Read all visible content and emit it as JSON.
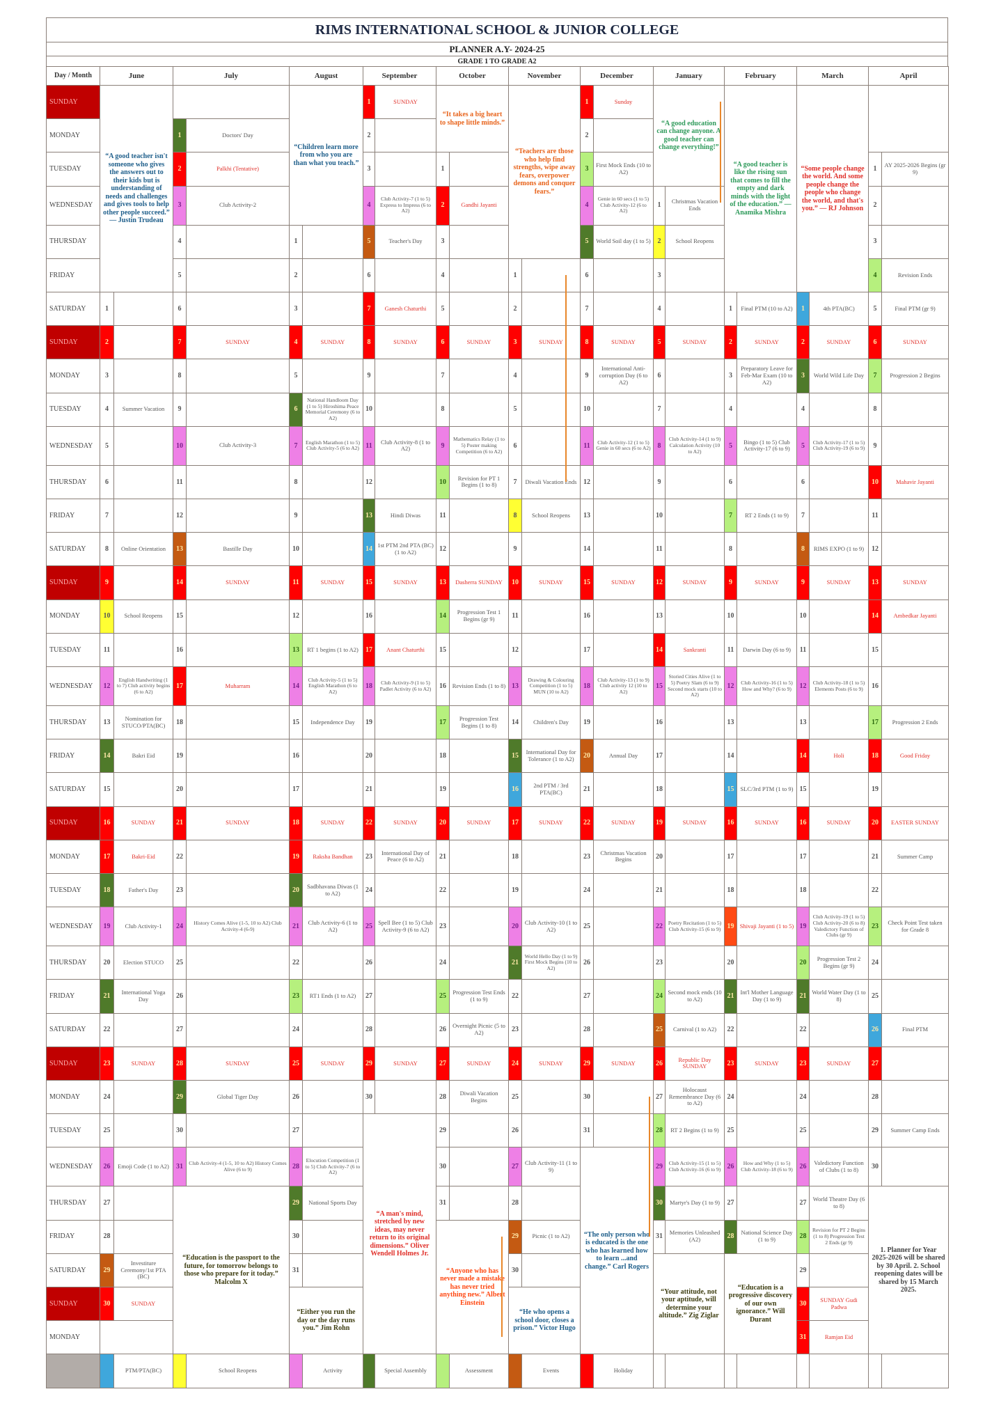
{
  "header": {
    "title": "RIMS INTERNATIONAL SCHOOL & JUNIOR COLLEGE",
    "planner": "PLANNER A.Y- 2024-25",
    "grades": "GRADE 1  TO GRADE A2",
    "corner": "Day / Month"
  },
  "days_of_week": [
    "SUNDAY",
    "MONDAY",
    "TUESDAY",
    "WEDNESDAY",
    "THURSDAY",
    "FRIDAY",
    "SATURDAY"
  ],
  "sunday_label": "SUNDAY",
  "colors": {
    "ptm": "#3fa7dc",
    "reopen": "#ffff33",
    "act": "#ee80e6",
    "asm": "#4f7a2a",
    "ass": "#b6f07e",
    "evt": "#c45a12",
    "hol": "#ff0000",
    "orange": "#ff4a14",
    "sunday_day_bg": "#c00000",
    "legend_gray": "#b2aca8"
  },
  "months": [
    {
      "name": "June",
      "start": 6,
      "days": 30,
      "quote_top": {
        "text": "“A good teacher isn't someone who gives the answers out to their kids but is understanding of needs and challenges and gives tools to help other people succeed.” — Justin Trudeau",
        "color": "#1f5f8b"
      },
      "quote_bottom": {
        "text": "",
        "color": "#333"
      },
      "ev": {
        "2": [
          "",
          "hol"
        ],
        "4": "Summer Vacation",
        "8": "Online Orientation",
        "9": [
          "",
          "hol"
        ],
        "10": [
          "School Reopens",
          "reopen"
        ],
        "12": [
          "English Handwriting (1 to 7) Club activity begins (6 to A2)",
          "act"
        ],
        "13": "Nomination for STUCO/PTA(BC)",
        "14": [
          "Bakri Eid",
          "asm"
        ],
        "17": [
          "Bakri-Eid",
          "hol"
        ],
        "18": [
          "Father's Day",
          "asm"
        ],
        "19": [
          "Club Activity-1",
          "act"
        ],
        "20": "Election STUCO",
        "21": [
          "International Yoga Day",
          "asm"
        ],
        "26": [
          "Emoji Code (1 to A2)",
          "act"
        ],
        "29": [
          "Investiture Ceremony/1st PTA (BC)",
          "evt"
        ]
      }
    },
    {
      "name": "July",
      "start": 1,
      "days": 31,
      "quote_top": {
        "text": "",
        "color": "#333"
      },
      "quote_bottom": {
        "text": "“Education is the passport to the future, for tomorrow belongs to those who prepare for it today.” Malcolm X",
        "color": "#3d3d10"
      },
      "ev": {
        "1": [
          "Doctors' Day",
          "asm"
        ],
        "2": [
          "Palkhi (Tentative)",
          "hol"
        ],
        "3": [
          "Club Activity-2",
          "act"
        ],
        "10": [
          "Club Activity-3",
          "act"
        ],
        "13": [
          "Bastille Day",
          "evt"
        ],
        "17": [
          "Muharram",
          "hol"
        ],
        "24": [
          "History Comes Alive (1-5, 10 to A2) Club Activity-4 (6-9)",
          "act"
        ],
        "29": [
          "Global Tiger Day",
          "asm"
        ],
        "31": [
          "Club Activity-4 (1-5, 10 to A2) History Comes Alive (6 to 9)",
          "act"
        ]
      }
    },
    {
      "name": "August",
      "start": 4,
      "days": 31,
      "quote_top": {
        "text": "“Children learn more from who you are than what you teach.”",
        "color": "#1f5f8b"
      },
      "quote_bottom": {
        "text": "“Either you run the day or the day runs you.” Jim Rohn",
        "color": "#3d3d10"
      },
      "ev": {
        "6": [
          "National Handloom Day (1 to 5) Hiroshima Peace Memorial Ceremony (6 to A2)",
          "asm"
        ],
        "7": [
          "English Marathon (1 to 5) Club Activity-5 (6 to A2)",
          "act"
        ],
        "13": [
          "RT 1 begins (1 to A2)",
          "ass"
        ],
        "14": [
          "Club Activity-5 (1 to 5) English Marathon (6 to A2)",
          "act"
        ],
        "15": "Independence Day",
        "19": [
          "Raksha Bandhan",
          "hol"
        ],
        "20": [
          "Sadbhavana Diwas (1 to A2)",
          "asm"
        ],
        "21": [
          "Club Activity-6 (1 to A2)",
          "act"
        ],
        "23": [
          "RT1 Ends (1 to A2)",
          "ass"
        ],
        "28": [
          "Elocution Competition (1 to 5) Club Activity-7 (6 to A2)",
          "act"
        ],
        "29": [
          "National Sports Day",
          "asm"
        ]
      }
    },
    {
      "name": "September",
      "start": 0,
      "days": 30,
      "quote_top": {
        "text": "",
        "color": "#333"
      },
      "quote_bottom": {
        "text": "“A man's mind, stretched by new ideas, may never return to its original dimensions.” Oliver Wendell Holmes Jr.",
        "color": "#e0302a"
      },
      "ev": {
        "4": [
          "Club Activity-7 (1 to 5) Express to Impress (6 to A2)",
          "act"
        ],
        "5": [
          "Teacher's Day",
          "evt"
        ],
        "7": [
          "Ganesh Chaturthi",
          "hol"
        ],
        "11": [
          "Club Activity-8 (1 to A2)",
          "act"
        ],
        "13": [
          "Hindi Diwas",
          "asm"
        ],
        "14": [
          "1st PTM 2nd PTA (BC) (1 to A2)",
          "ptm"
        ],
        "17": [
          "Anant Chaturthi",
          "hol"
        ],
        "18": [
          "Club Activity-9 (1 to 5) Padlet Activity (6 to A2)",
          "act"
        ],
        "23": "International Day of Peace (6 to A2)",
        "25": [
          "Spell Bee (1 to 5) Club Activity-9 (6 to A2)",
          "act"
        ]
      }
    },
    {
      "name": "October",
      "start": 2,
      "days": 31,
      "quote_top": {
        "text": "“It takes a big heart to shape little minds.”",
        "color": "#e8641c"
      },
      "quote_bottom": {
        "text": "“Anyone who has never made a mistake has never tried anything new.” Albert Einstein",
        "color": "#ff4a14"
      },
      "ev": {
        "2": [
          "Gandhi Jayanti",
          "hol"
        ],
        "9": [
          "Mathematics Relay (1 to 5) Poster making Competition (6 to A2)",
          "act"
        ],
        "10": [
          "Revision for PT 1 Begins (1 to 8)",
          "ass"
        ],
        "13": [
          "Dasherra SUNDAY",
          "hol"
        ],
        "14": [
          "Progression Test 1 Begins (gr 9)",
          "ass"
        ],
        "16": "Revision Ends (1 to 8)",
        "17": [
          "Progression Test Begins (1 to 8)",
          "ass"
        ],
        "25": [
          "Progression Test Ends (1 to 9)",
          "ass"
        ],
        "26": "Overnight Picnic (5 to A2)",
        "28": "Diwali Vacation Begins"
      }
    },
    {
      "name": "November",
      "start": 5,
      "days": 30,
      "quote_top": {
        "text": "“Teachers are those who help find strengths, wipe away fears, overpower demons and conquer fears.”",
        "color": "#e8641c"
      },
      "quote_bottom": {
        "text": "“He who opens a school door, closes a prison.” Victor Hugo",
        "color": "#1f5f8b"
      },
      "ev": {
        "7": "Diwali Vacation Ends",
        "8": [
          "School Reopens",
          "reopen"
        ],
        "13": [
          "Drawing & Colouring Competition (1 to 5) MUN (10 to A2)",
          "act"
        ],
        "14": "Children's Day",
        "15": [
          "International Day for Tolerance (1 to A2)",
          "asm"
        ],
        "16": [
          "2nd PTM / 3rd PTA(BC)",
          "ptm"
        ],
        "20": [
          "Club Activity-10 (1 to A2)",
          "act"
        ],
        "21": [
          "World Hello Day (1 to 9) First Mock Begins (10 to A2)",
          "asm"
        ],
        "27": [
          "Club Activity-11 (1 to 9)",
          "act"
        ],
        "29": [
          "Picnic (1 to A2)",
          "evt"
        ]
      }
    },
    {
      "name": "December",
      "start": 0,
      "days": 31,
      "quote_top": {
        "text": "",
        "color": "#333"
      },
      "quote_bottom": {
        "text": "“The only person who is educated is the one who has learned how to learn ...and change.” Carl Rogers",
        "color": "#1f5f8b"
      },
      "ev": {
        "1": [
          "Sunday",
          "hol"
        ],
        "3": [
          "First Mock Ends (10 to A2)",
          "ass"
        ],
        "4": [
          "Genie in 60 secs (1 to 5) Club Activity-12 (6 to A2)",
          "act"
        ],
        "5": [
          "World Soil day (1 to 5)",
          "asm"
        ],
        "9": "International Anti-corruption Day (6 to A2)",
        "11": [
          "Club Activity-12 (1 to 5) Genie in 60 secs (6 to A2)",
          "act"
        ],
        "18": [
          "Club Activity-13 (1 to 9) Club activity 12 (10 to A2)",
          "act"
        ],
        "20": [
          "Annual Day",
          "evt"
        ],
        "23": "Christmas Vacation Begins"
      }
    },
    {
      "name": "January",
      "start": 3,
      "days": 31,
      "quote_top": {
        "text": "“A good education can change anyone. A good teacher can change everything!”",
        "color": "#2e9a5a"
      },
      "quote_bottom": {
        "text": "“Your attitude, not your aptitude, will determine your altitude.” Zig Ziglar",
        "color": "#3d3d10"
      },
      "ev": {
        "1": "Christmas Vacation Ends",
        "2": [
          "School Reopens",
          "reopen"
        ],
        "8": [
          "Club Activity-14 (1 to 9) Calculation Activity (10 to A2)",
          "act"
        ],
        "14": [
          "Sankranti",
          "hol"
        ],
        "15": [
          "Storied Cities Alive (1 to 5) Poetry Slam (6 to 9) Second mock starts (10 to A2)",
          "act"
        ],
        "22": [
          "Poetry Recitation (1 to 5) Club Activity-15 (6 to 9)",
          "act"
        ],
        "24": [
          "Second mock ends (10 to A2)",
          "ass"
        ],
        "25": [
          "Carnival (1 to A2)",
          "evt"
        ],
        "26": [
          "Republic Day SUNDAY",
          "hol"
        ],
        "27": "Holocaust Remembrance Day (6 to A2)",
        "28": [
          "RT 2 Begins (1 to 9)",
          "ass"
        ],
        "29": [
          "Club Activity-15 (1 to 5) Club Activity-16 (6 to 9)",
          "act"
        ],
        "30": [
          "Martyr's Day (1 to 9)",
          "asm"
        ],
        "31": "Memories Unleashed (A2)"
      }
    },
    {
      "name": "February",
      "start": 6,
      "days": 28,
      "quote_top": {
        "text": "“A good teacher is like the rising sun that comes to fill the empty and dark minds with the light of the education.” — Anamika Mishra",
        "color": "#2e9a5a"
      },
      "quote_bottom": {
        "text": "“Education is a progressive discovery of our own ignorance.” Will Durant",
        "color": "#3d3d10"
      },
      "ev": {
        "1": "Final PTM (10 to A2)",
        "3": "Preparatory Leave for Feb-Mar Exam (10 to A2)",
        "5": [
          "Bingo (1 to 5) Club Activity-17 (6 to 9)",
          "act"
        ],
        "7": [
          "RT 2 Ends (1 to 9)",
          "ass"
        ],
        "11": "Darwin Day (6 to 9)",
        "12": [
          "Club Activity-16 (1 to 5) How and Why? (6 to 9)",
          "act"
        ],
        "15": [
          "SLC/3rd PTM (1 to 9)",
          "ptm"
        ],
        "19": [
          "Shivaji Jayanti (1 to 5)",
          "orange"
        ],
        "21": [
          "Int'l Mother Language Day (1 to 9)",
          "asm"
        ],
        "26": [
          "How and Why (1 to 5) Club Activity-18 (6 to 9)",
          "act"
        ],
        "28": [
          "National Science Day (1 to 9)",
          "asm"
        ]
      }
    },
    {
      "name": "March",
      "start": 6,
      "days": 31,
      "quote_top": {
        "text": "“Some people change the world. And some people change the people who change the world, and that's you.” — RJ Johnson",
        "color": "#e0302a"
      },
      "quote_bottom": {
        "text": "",
        "color": "#333"
      },
      "ev": {
        "1": [
          "4th PTA(BC)",
          "ptm"
        ],
        "3": [
          "World Wild Life Day",
          "asm"
        ],
        "5": [
          "Club Activity-17 (1 to 5) Club Activity-19 (6 to 9)",
          "act"
        ],
        "8": [
          "RIMS EXPO (1 to 9)",
          "evt"
        ],
        "12": [
          "Club Activity-18 (1 to 5) Elements Posts (6 to 9)",
          "act"
        ],
        "14": [
          "Holi",
          "hol"
        ],
        "19": [
          "Club Activity-19 (1 to 5) Club Activity-20 (6 to 8) Valedictory Function of Clubs (gr 9)",
          "act"
        ],
        "20": [
          "Progression Test 2 Begins (gr 9)",
          "ass"
        ],
        "21": [
          "World Water Day (1 to 8)",
          "asm"
        ],
        "26": [
          "Valedictory Function of Clubs (1 to 8)",
          "act"
        ],
        "27": "World Theatre Day (6 to 8)",
        "28": [
          "Revision for PT 2 Begins (1 to 8) Progression Test 2 Ends (gr 9)",
          "ass"
        ],
        "30": [
          "SUNDAY Gudi Padwa",
          "hol"
        ],
        "31": [
          "Ramjan Eid",
          "hol"
        ]
      }
    },
    {
      "name": "April",
      "start": 2,
      "days": 30,
      "quote_top": {
        "text": "",
        "color": "#333"
      },
      "quote_bottom": {
        "text": "1. Planner for Year 2025-2026 will be shared by 30 April. 2. School reopening dates will be shared by 15 March 2025.",
        "color": "#444"
      },
      "ev": {
        "1": "AY 2025-2026 Begins (gr 9)",
        "4": [
          "Revision Ends",
          "ass"
        ],
        "5": "Final PTM (gr 9)",
        "7": [
          "Progression 2 Begins",
          "ass"
        ],
        "10": [
          "Mahavir Jayanti",
          "hol"
        ],
        "14": [
          "Ambedkar Jayanti",
          "hol"
        ],
        "17": [
          "Progression 2 Ends",
          "ass"
        ],
        "18": [
          "Good Friday",
          "hol"
        ],
        "20": [
          "EASTER SUNDAY",
          "hol"
        ],
        "21": "Summer Camp",
        "23": [
          "Check Point Test taken for Grade 8",
          "ass"
        ],
        "26": [
          "Final PTM",
          "ptm"
        ],
        "27": [
          "",
          "hol"
        ],
        "29": "Summer Camp Ends"
      }
    }
  ],
  "legend": [
    {
      "label": "PTM/PTA(BC)",
      "cat": "ptm"
    },
    {
      "label": "School Reopens",
      "cat": "reopen"
    },
    {
      "label": "Activity",
      "cat": "act"
    },
    {
      "label": "Special Assembly",
      "cat": "asm"
    },
    {
      "label": "Assessment",
      "cat": "ass"
    },
    {
      "label": "Events",
      "cat": "evt"
    },
    {
      "label": "Holiday",
      "cat": "hol"
    }
  ]
}
